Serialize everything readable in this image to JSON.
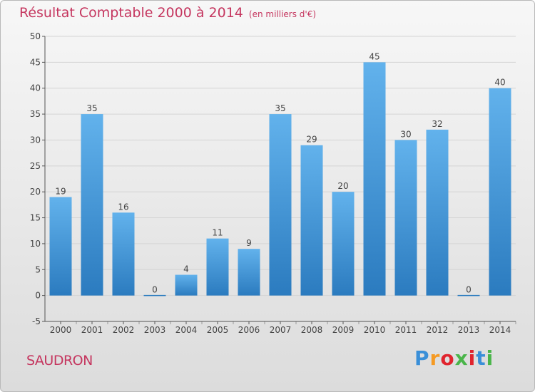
{
  "header": {
    "title": "Résultat Comptable 2000 à 2014",
    "subtitle": "(en milliers d'€)"
  },
  "footer": {
    "town": "SAUDRON",
    "logo_text": "Proxiti"
  },
  "colors": {
    "title": "#c5365f",
    "bar_light": "#62b2ec",
    "bar_dark": "#2b7bbf",
    "grid": "#d4d4d4",
    "axis": "#555555"
  },
  "chart_data": {
    "type": "bar",
    "title": "Résultat Comptable 2000 à 2014",
    "subtitle": "(en milliers d'€)",
    "categories": [
      "2000",
      "2001",
      "2002",
      "2003",
      "2004",
      "2005",
      "2006",
      "2007",
      "2008",
      "2009",
      "2010",
      "2011",
      "2012",
      "2013",
      "2014"
    ],
    "values": [
      19,
      35,
      16,
      0,
      4,
      11,
      9,
      35,
      29,
      20,
      45,
      30,
      32,
      0,
      40
    ],
    "data_labels": [
      "19",
      "35",
      "16",
      "0",
      "4",
      "11",
      "9",
      "35",
      "29",
      "20",
      "45",
      "30",
      "32",
      "0",
      "40"
    ],
    "ylim": [
      -5,
      50
    ],
    "yticks": [
      -5,
      0,
      5,
      10,
      15,
      20,
      25,
      30,
      35,
      40,
      45,
      50
    ],
    "grid": true,
    "legend": "none"
  }
}
